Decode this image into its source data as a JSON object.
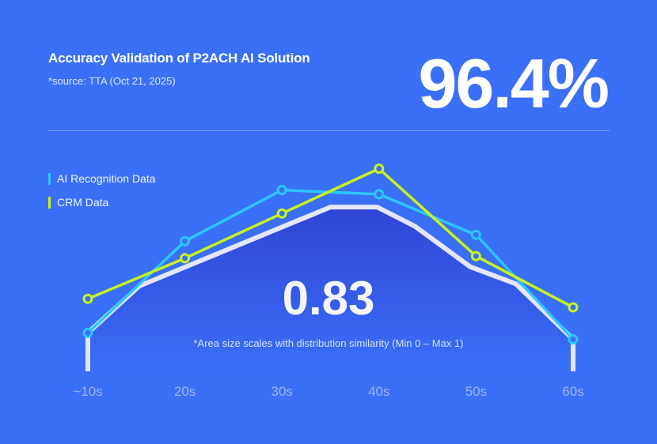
{
  "header": {
    "title": "Accuracy Validation of P2ACH AI Solution",
    "source": "*source: TTA (Oct 21, 2025)",
    "accuracy": "96.4%"
  },
  "similarity": {
    "value": "0.83",
    "note": "*Area size scales with distribution similarity (Min 0 – Max 1)"
  },
  "colors": {
    "background": "#3a6ff8",
    "ai": "#2ec5ff",
    "crm": "#c8f51c",
    "overlap_fill": "#3350dc",
    "overlap_stroke": "#e4e6fb"
  },
  "chart_data": {
    "type": "line",
    "categories": [
      "~10s",
      "20s",
      "30s",
      "40s",
      "50s",
      "60s"
    ],
    "series": [
      {
        "name": "AI Recognition Data",
        "values": [
          18,
          61,
          85,
          83,
          64,
          15
        ]
      },
      {
        "name": "CRM Data",
        "values": [
          34,
          53,
          74,
          95,
          54,
          30
        ]
      }
    ],
    "overlap_area": [
      [
        0,
        18
      ],
      [
        0.53,
        40
      ],
      [
        2.5,
        77
      ],
      [
        2.98,
        77
      ],
      [
        3.37,
        68
      ],
      [
        3.94,
        49
      ],
      [
        4.41,
        41
      ],
      [
        5,
        15
      ]
    ],
    "ylim": [
      0,
      100
    ],
    "grid": false,
    "legend": "top-left"
  }
}
